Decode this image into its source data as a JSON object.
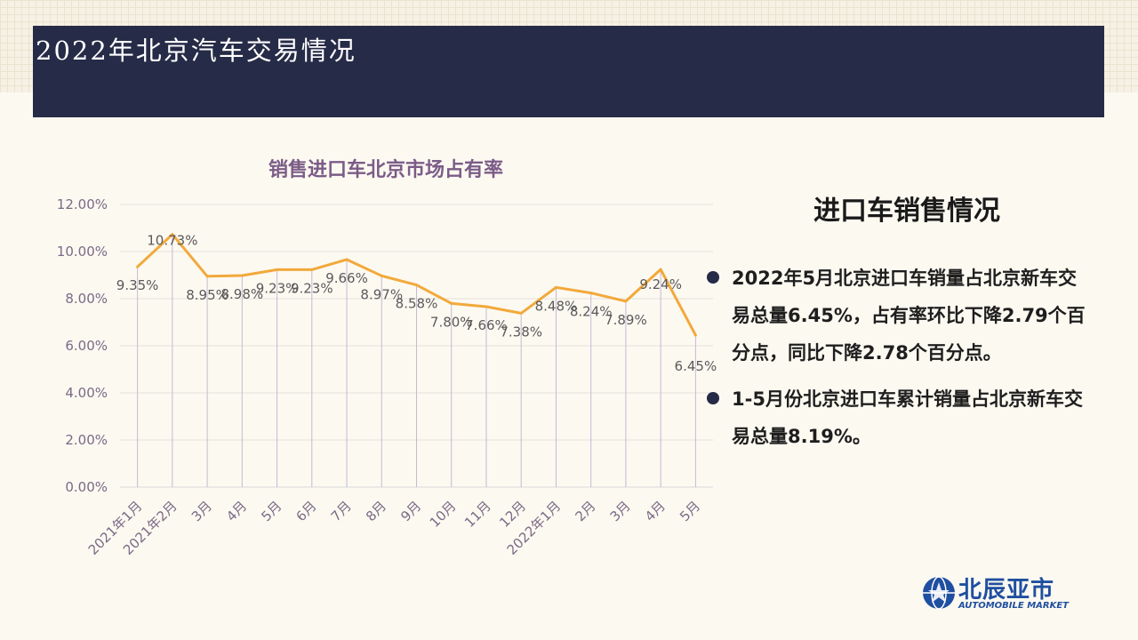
{
  "header": {
    "title": "2022年北京汽车交易情况"
  },
  "chart_data": {
    "type": "line",
    "title": "销售进口车北京市场占有率",
    "categories": [
      "2021年1月",
      "2021年2月",
      "3月",
      "4月",
      "5月",
      "6月",
      "7月",
      "8月",
      "9月",
      "10月",
      "11月",
      "12月",
      "2022年1月",
      "2月",
      "3月",
      "4月",
      "5月"
    ],
    "values": [
      9.35,
      10.73,
      8.95,
      8.98,
      9.23,
      9.23,
      9.66,
      8.97,
      8.58,
      7.8,
      7.66,
      7.38,
      8.48,
      8.24,
      7.89,
      9.24,
      6.45
    ],
    "data_labels": [
      "9.35%",
      "10.73%",
      "8.95%",
      "8.98%",
      "9.23%",
      "9.23%",
      "9.66%",
      "8.97%",
      "8.58%",
      "7.80%",
      "7.66%",
      "7.38%",
      "8.48%",
      "8.24%",
      "7.89%",
      "9.24%",
      "6.45%"
    ],
    "y_ticks": [
      "0.00%",
      "2.00%",
      "4.00%",
      "6.00%",
      "8.00%",
      "10.00%",
      "12.00%"
    ],
    "ylim": [
      0,
      12
    ],
    "grid": "horizontal",
    "drop_lines": true,
    "line_color": "#f2a93b",
    "drop_line_color": "#c8b8d4",
    "title_color": "#7b5c87"
  },
  "panel": {
    "title": "进口车销售情况",
    "bullets": [
      "2022年5月北京进口车销量占北京新车交易总量6.45%，占有率环比下降2.79个百分点，同比下降2.78个百分点。",
      "1-5月份北京进口车累计销量占北京新车交易总量8.19%。"
    ]
  },
  "logo": {
    "name": "北辰亚市",
    "sub": "AUTOMOBILE MARKET",
    "color": "#1f4fa0"
  }
}
